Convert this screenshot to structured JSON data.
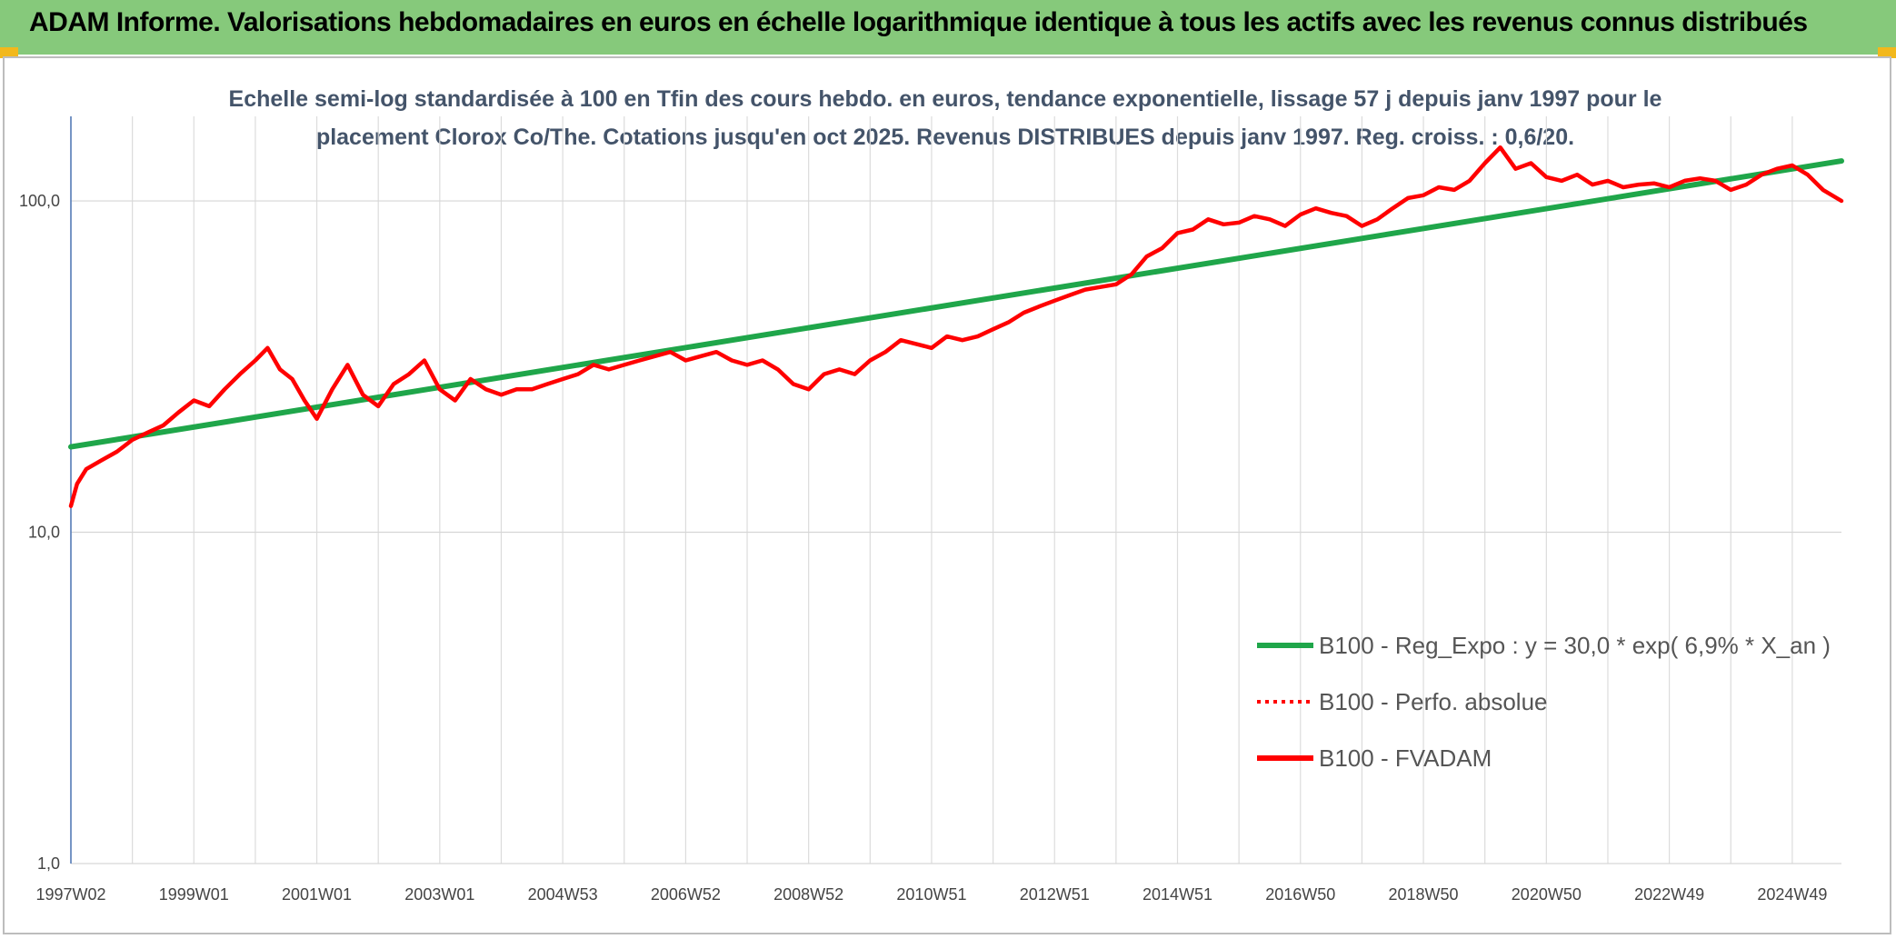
{
  "banner": {
    "title": "ADAM Informe. Valorisations hebdomadaires en euros en échelle logarithmique identique à tous les actifs avec les revenus connus distribués"
  },
  "chart_data": {
    "type": "line",
    "title": "Echelle semi-log standardisée à 100 en Tfin des cours hebdo. en euros, tendance exponentielle, lissage 57 j depuis janv 1997 pour le placement Clorox Co/The. Cotations jusqu'en oct 2025. Revenus DISTRIBUES depuis janv 1997. Reg. croiss. : 0,6/20.",
    "y_scale": "log",
    "ylim": [
      1,
      180
    ],
    "xlim": [
      1997.0,
      2025.8
    ],
    "grid": true,
    "legend_position": "bottom-right",
    "y_ticks": [
      {
        "value": 1,
        "label": "1,0"
      },
      {
        "value": 10,
        "label": "10,0"
      },
      {
        "value": 100,
        "label": "100,0"
      }
    ],
    "x_ticks": [
      {
        "x": 1997.0,
        "label": "1997W02"
      },
      {
        "x": 1999.0,
        "label": "1999W01"
      },
      {
        "x": 2001.0,
        "label": "2001W01"
      },
      {
        "x": 2003.0,
        "label": "2003W01"
      },
      {
        "x": 2005.0,
        "label": "2004W53"
      },
      {
        "x": 2007.0,
        "label": "2006W52"
      },
      {
        "x": 2009.0,
        "label": "2008W52"
      },
      {
        "x": 2011.0,
        "label": "2010W51"
      },
      {
        "x": 2013.0,
        "label": "2012W51"
      },
      {
        "x": 2015.0,
        "label": "2014W51"
      },
      {
        "x": 2017.0,
        "label": "2016W50"
      },
      {
        "x": 2019.0,
        "label": "2018W50"
      },
      {
        "x": 2021.0,
        "label": "2020W50"
      },
      {
        "x": 2023.0,
        "label": "2022W49"
      },
      {
        "x": 2025.0,
        "label": "2024W49"
      }
    ],
    "series": [
      {
        "name": "B100 - Reg_Expo : y = 30,0 * exp( 6,9% *  X_an )",
        "color": "#1fa64a",
        "style": "solid",
        "x": [
          1997.0,
          2025.8
        ],
        "y": [
          18.1,
          132
        ]
      },
      {
        "name": "B100 - Perfo. absolue",
        "color": "#ff0000",
        "style": "dotted",
        "x": [],
        "y": []
      },
      {
        "name": "B100 - FVADAM",
        "color": "#ff0000",
        "style": "solid",
        "x": [
          1997.0,
          1997.1,
          1997.25,
          1997.5,
          1997.75,
          1998.0,
          1998.25,
          1998.5,
          1998.75,
          1999.0,
          1999.25,
          1999.5,
          1999.75,
          2000.0,
          2000.2,
          2000.4,
          2000.6,
          2000.8,
          2001.0,
          2001.25,
          2001.5,
          2001.75,
          2002.0,
          2002.25,
          2002.5,
          2002.75,
          2003.0,
          2003.25,
          2003.5,
          2003.75,
          2004.0,
          2004.25,
          2004.5,
          2004.75,
          2005.0,
          2005.25,
          2005.5,
          2005.75,
          2006.0,
          2006.25,
          2006.5,
          2006.75,
          2007.0,
          2007.25,
          2007.5,
          2007.75,
          2008.0,
          2008.25,
          2008.5,
          2008.75,
          2009.0,
          2009.25,
          2009.5,
          2009.75,
          2010.0,
          2010.25,
          2010.5,
          2010.75,
          2011.0,
          2011.25,
          2011.5,
          2011.75,
          2012.0,
          2012.25,
          2012.5,
          2012.75,
          2013.0,
          2013.25,
          2013.5,
          2013.75,
          2014.0,
          2014.25,
          2014.5,
          2014.75,
          2015.0,
          2015.25,
          2015.5,
          2015.75,
          2016.0,
          2016.25,
          2016.5,
          2016.75,
          2017.0,
          2017.25,
          2017.5,
          2017.75,
          2018.0,
          2018.25,
          2018.5,
          2018.75,
          2019.0,
          2019.25,
          2019.5,
          2019.75,
          2020.0,
          2020.25,
          2020.5,
          2020.75,
          2021.0,
          2021.25,
          2021.5,
          2021.75,
          2022.0,
          2022.25,
          2022.5,
          2022.75,
          2023.0,
          2023.25,
          2023.5,
          2023.75,
          2024.0,
          2024.25,
          2024.5,
          2024.75,
          2025.0,
          2025.25,
          2025.5,
          2025.8
        ],
        "y": [
          12,
          14,
          15.5,
          16.5,
          17.5,
          19,
          20,
          21,
          23,
          25,
          24,
          27,
          30,
          33,
          36,
          31,
          29,
          25,
          22,
          27,
          32,
          26,
          24,
          28,
          30,
          33,
          27,
          25,
          29,
          27,
          26,
          27,
          27,
          28,
          29,
          30,
          32,
          31,
          32,
          33,
          34,
          35,
          33,
          34,
          35,
          33,
          32,
          33,
          31,
          28,
          27,
          30,
          31,
          30,
          33,
          35,
          38,
          37,
          36,
          39,
          38,
          39,
          41,
          43,
          46,
          48,
          50,
          52,
          54,
          55,
          56,
          60,
          68,
          72,
          80,
          82,
          88,
          85,
          86,
          90,
          88,
          84,
          91,
          95,
          92,
          90,
          84,
          88,
          95,
          102,
          104,
          110,
          108,
          115,
          130,
          145,
          125,
          130,
          118,
          115,
          120,
          112,
          115,
          110,
          112,
          113,
          110,
          115,
          117,
          115,
          108,
          112,
          120,
          125,
          128,
          120,
          108,
          100
        ]
      }
    ]
  }
}
